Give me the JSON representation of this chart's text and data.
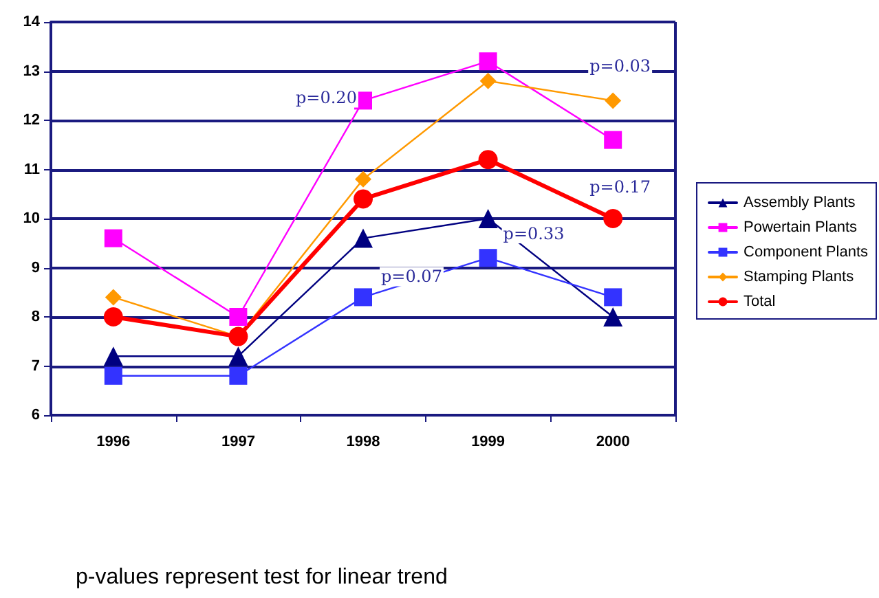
{
  "chart_data": {
    "type": "line",
    "categories": [
      "1996",
      "1997",
      "1998",
      "1999",
      "2000"
    ],
    "series": [
      {
        "name": "Assembly Plants",
        "color": "#000080",
        "marker": "triangle",
        "values": [
          7.2,
          7.2,
          9.6,
          10.0,
          8.0
        ]
      },
      {
        "name": "Powertain Plants",
        "color": "#ff00ff",
        "marker": "square",
        "values": [
          9.6,
          8.0,
          12.4,
          13.2,
          11.6
        ]
      },
      {
        "name": "Component Plants",
        "color": "#3333ff",
        "marker": "square",
        "values": [
          6.8,
          6.8,
          8.4,
          9.2,
          8.4
        ]
      },
      {
        "name": "Stamping Plants",
        "color": "#ff9900",
        "marker": "diamond",
        "values": [
          8.4,
          7.6,
          10.8,
          12.8,
          12.4
        ]
      },
      {
        "name": "Total",
        "color": "#ff0000",
        "marker": "circle",
        "values": [
          8.0,
          7.6,
          10.4,
          11.2,
          10.0
        ]
      }
    ],
    "ylim": [
      6,
      14
    ],
    "yticks": [
      6,
      7,
      8,
      9,
      10,
      11,
      12,
      13,
      14
    ],
    "grid": "y",
    "legend": "right",
    "line_style": "solid",
    "annotations": [
      {
        "text": "p=0.20",
        "x": "1998",
        "y": 12.4
      },
      {
        "text": "p=0.03",
        "x": "2000",
        "y": 12.4
      },
      {
        "text": "p=0.17",
        "x": "2000",
        "y": 10.0
      },
      {
        "text": "p=0.33",
        "x": "1999",
        "y": 10.0
      },
      {
        "text": "p=0.07",
        "x": "1998",
        "y": 8.4
      },
      "p-values represent test for linear trend"
    ]
  }
}
